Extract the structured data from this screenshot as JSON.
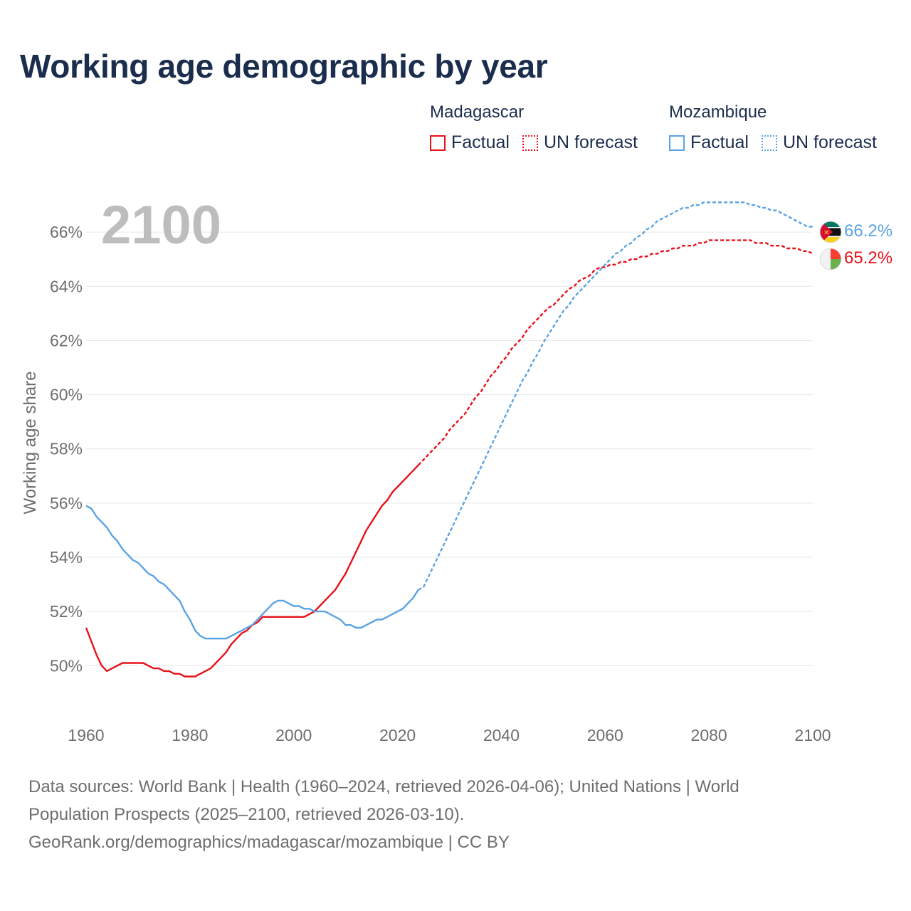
{
  "title": "Working age demographic by year",
  "legend": {
    "groups": [
      {
        "country": "Madagascar",
        "factual_label": "Factual",
        "forecast_label": "UN forecast",
        "color": "#e8111a"
      },
      {
        "country": "Mozambique",
        "factual_label": "Factual",
        "forecast_label": "UN forecast",
        "color": "#5aa3e3"
      }
    ]
  },
  "chart_data": {
    "type": "line",
    "title": "Working age demographic by year",
    "ylabel": "Working age share",
    "xlabel": "",
    "year_watermark": "2100",
    "xlim": [
      1960,
      2100
    ],
    "ylim": [
      48.3,
      68
    ],
    "x_ticks": [
      1960,
      1980,
      2000,
      2020,
      2040,
      2060,
      2080,
      2100
    ],
    "y_ticks": [
      50,
      52,
      54,
      56,
      58,
      60,
      62,
      64,
      66
    ],
    "y_tick_suffix": "%",
    "forecast_start_year": 2025,
    "series": [
      {
        "name": "Madagascar",
        "color": "#e8111a",
        "end_label": "65.2%",
        "flag": "madagascar-flag",
        "points": [
          [
            1960,
            51.4
          ],
          [
            1961,
            50.9
          ],
          [
            1962,
            50.4
          ],
          [
            1963,
            50.0
          ],
          [
            1964,
            49.8
          ],
          [
            1965,
            49.9
          ],
          [
            1966,
            50.0
          ],
          [
            1967,
            50.1
          ],
          [
            1968,
            50.1
          ],
          [
            1969,
            50.1
          ],
          [
            1970,
            50.1
          ],
          [
            1971,
            50.1
          ],
          [
            1972,
            50.0
          ],
          [
            1973,
            49.9
          ],
          [
            1974,
            49.9
          ],
          [
            1975,
            49.8
          ],
          [
            1976,
            49.8
          ],
          [
            1977,
            49.7
          ],
          [
            1978,
            49.7
          ],
          [
            1979,
            49.6
          ],
          [
            1980,
            49.6
          ],
          [
            1981,
            49.6
          ],
          [
            1982,
            49.7
          ],
          [
            1983,
            49.8
          ],
          [
            1984,
            49.9
          ],
          [
            1985,
            50.1
          ],
          [
            1986,
            50.3
          ],
          [
            1987,
            50.5
          ],
          [
            1988,
            50.8
          ],
          [
            1989,
            51.0
          ],
          [
            1990,
            51.2
          ],
          [
            1991,
            51.3
          ],
          [
            1992,
            51.5
          ],
          [
            1993,
            51.6
          ],
          [
            1994,
            51.8
          ],
          [
            1995,
            51.8
          ],
          [
            1996,
            51.8
          ],
          [
            1997,
            51.8
          ],
          [
            1998,
            51.8
          ],
          [
            1999,
            51.8
          ],
          [
            2000,
            51.8
          ],
          [
            2001,
            51.8
          ],
          [
            2002,
            51.8
          ],
          [
            2003,
            51.9
          ],
          [
            2004,
            52.0
          ],
          [
            2005,
            52.2
          ],
          [
            2006,
            52.4
          ],
          [
            2007,
            52.6
          ],
          [
            2008,
            52.8
          ],
          [
            2009,
            53.1
          ],
          [
            2010,
            53.4
          ],
          [
            2011,
            53.8
          ],
          [
            2012,
            54.2
          ],
          [
            2013,
            54.6
          ],
          [
            2014,
            55.0
          ],
          [
            2015,
            55.3
          ],
          [
            2016,
            55.6
          ],
          [
            2017,
            55.9
          ],
          [
            2018,
            56.1
          ],
          [
            2019,
            56.4
          ],
          [
            2020,
            56.6
          ],
          [
            2021,
            56.8
          ],
          [
            2022,
            57.0
          ],
          [
            2023,
            57.2
          ],
          [
            2024,
            57.4
          ],
          [
            2025,
            57.6
          ],
          [
            2026,
            57.8
          ],
          [
            2027,
            58.0
          ],
          [
            2028,
            58.2
          ],
          [
            2029,
            58.4
          ],
          [
            2030,
            58.7
          ],
          [
            2031,
            58.9
          ],
          [
            2032,
            59.1
          ],
          [
            2033,
            59.3
          ],
          [
            2034,
            59.6
          ],
          [
            2035,
            59.9
          ],
          [
            2036,
            60.1
          ],
          [
            2037,
            60.4
          ],
          [
            2038,
            60.7
          ],
          [
            2039,
            60.9
          ],
          [
            2040,
            61.2
          ],
          [
            2041,
            61.4
          ],
          [
            2042,
            61.7
          ],
          [
            2043,
            61.9
          ],
          [
            2044,
            62.1
          ],
          [
            2045,
            62.4
          ],
          [
            2046,
            62.6
          ],
          [
            2047,
            62.8
          ],
          [
            2048,
            63.0
          ],
          [
            2049,
            63.2
          ],
          [
            2050,
            63.3
          ],
          [
            2051,
            63.5
          ],
          [
            2052,
            63.7
          ],
          [
            2053,
            63.9
          ],
          [
            2054,
            64.0
          ],
          [
            2055,
            64.2
          ],
          [
            2056,
            64.3
          ],
          [
            2057,
            64.4
          ],
          [
            2058,
            64.6
          ],
          [
            2059,
            64.7
          ],
          [
            2060,
            64.7
          ],
          [
            2061,
            64.8
          ],
          [
            2062,
            64.8
          ],
          [
            2063,
            64.9
          ],
          [
            2064,
            64.9
          ],
          [
            2065,
            65.0
          ],
          [
            2066,
            65.0
          ],
          [
            2067,
            65.1
          ],
          [
            2068,
            65.1
          ],
          [
            2069,
            65.2
          ],
          [
            2070,
            65.2
          ],
          [
            2071,
            65.3
          ],
          [
            2072,
            65.3
          ],
          [
            2073,
            65.4
          ],
          [
            2074,
            65.4
          ],
          [
            2075,
            65.5
          ],
          [
            2076,
            65.5
          ],
          [
            2077,
            65.5
          ],
          [
            2078,
            65.6
          ],
          [
            2079,
            65.6
          ],
          [
            2080,
            65.7
          ],
          [
            2081,
            65.7
          ],
          [
            2082,
            65.7
          ],
          [
            2083,
            65.7
          ],
          [
            2084,
            65.7
          ],
          [
            2085,
            65.7
          ],
          [
            2086,
            65.7
          ],
          [
            2087,
            65.7
          ],
          [
            2088,
            65.7
          ],
          [
            2089,
            65.6
          ],
          [
            2090,
            65.6
          ],
          [
            2091,
            65.6
          ],
          [
            2092,
            65.5
          ],
          [
            2093,
            65.5
          ],
          [
            2094,
            65.5
          ],
          [
            2095,
            65.4
          ],
          [
            2096,
            65.4
          ],
          [
            2097,
            65.4
          ],
          [
            2098,
            65.3
          ],
          [
            2099,
            65.3
          ],
          [
            2100,
            65.2
          ]
        ]
      },
      {
        "name": "Mozambique",
        "color": "#5aa3e3",
        "end_label": "66.2%",
        "flag": "mozambique-flag",
        "points": [
          [
            1960,
            55.9
          ],
          [
            1961,
            55.8
          ],
          [
            1962,
            55.5
          ],
          [
            1963,
            55.3
          ],
          [
            1964,
            55.1
          ],
          [
            1965,
            54.8
          ],
          [
            1966,
            54.6
          ],
          [
            1967,
            54.3
          ],
          [
            1968,
            54.1
          ],
          [
            1969,
            53.9
          ],
          [
            1970,
            53.8
          ],
          [
            1971,
            53.6
          ],
          [
            1972,
            53.4
          ],
          [
            1973,
            53.3
          ],
          [
            1974,
            53.1
          ],
          [
            1975,
            53.0
          ],
          [
            1976,
            52.8
          ],
          [
            1977,
            52.6
          ],
          [
            1978,
            52.4
          ],
          [
            1979,
            52.0
          ],
          [
            1980,
            51.7
          ],
          [
            1981,
            51.3
          ],
          [
            1982,
            51.1
          ],
          [
            1983,
            51.0
          ],
          [
            1984,
            51.0
          ],
          [
            1985,
            51.0
          ],
          [
            1986,
            51.0
          ],
          [
            1987,
            51.0
          ],
          [
            1988,
            51.1
          ],
          [
            1989,
            51.2
          ],
          [
            1990,
            51.3
          ],
          [
            1991,
            51.4
          ],
          [
            1992,
            51.5
          ],
          [
            1993,
            51.7
          ],
          [
            1994,
            51.9
          ],
          [
            1995,
            52.1
          ],
          [
            1996,
            52.3
          ],
          [
            1997,
            52.4
          ],
          [
            1998,
            52.4
          ],
          [
            1999,
            52.3
          ],
          [
            2000,
            52.2
          ],
          [
            2001,
            52.2
          ],
          [
            2002,
            52.1
          ],
          [
            2003,
            52.1
          ],
          [
            2004,
            52.0
          ],
          [
            2005,
            52.0
          ],
          [
            2006,
            52.0
          ],
          [
            2007,
            51.9
          ],
          [
            2008,
            51.8
          ],
          [
            2009,
            51.7
          ],
          [
            2010,
            51.5
          ],
          [
            2011,
            51.5
          ],
          [
            2012,
            51.4
          ],
          [
            2013,
            51.4
          ],
          [
            2014,
            51.5
          ],
          [
            2015,
            51.6
          ],
          [
            2016,
            51.7
          ],
          [
            2017,
            51.7
          ],
          [
            2018,
            51.8
          ],
          [
            2019,
            51.9
          ],
          [
            2020,
            52.0
          ],
          [
            2021,
            52.1
          ],
          [
            2022,
            52.3
          ],
          [
            2023,
            52.5
          ],
          [
            2024,
            52.8
          ],
          [
            2025,
            52.9
          ],
          [
            2026,
            53.3
          ],
          [
            2027,
            53.7
          ],
          [
            2028,
            54.1
          ],
          [
            2029,
            54.5
          ],
          [
            2030,
            54.9
          ],
          [
            2031,
            55.3
          ],
          [
            2032,
            55.7
          ],
          [
            2033,
            56.1
          ],
          [
            2034,
            56.5
          ],
          [
            2035,
            56.9
          ],
          [
            2036,
            57.3
          ],
          [
            2037,
            57.7
          ],
          [
            2038,
            58.1
          ],
          [
            2039,
            58.5
          ],
          [
            2040,
            58.9
          ],
          [
            2041,
            59.3
          ],
          [
            2042,
            59.7
          ],
          [
            2043,
            60.1
          ],
          [
            2044,
            60.5
          ],
          [
            2045,
            60.8
          ],
          [
            2046,
            61.2
          ],
          [
            2047,
            61.5
          ],
          [
            2048,
            61.9
          ],
          [
            2049,
            62.2
          ],
          [
            2050,
            62.5
          ],
          [
            2051,
            62.8
          ],
          [
            2052,
            63.1
          ],
          [
            2053,
            63.3
          ],
          [
            2054,
            63.6
          ],
          [
            2055,
            63.8
          ],
          [
            2056,
            64.0
          ],
          [
            2057,
            64.2
          ],
          [
            2058,
            64.4
          ],
          [
            2059,
            64.6
          ],
          [
            2060,
            64.8
          ],
          [
            2061,
            65.0
          ],
          [
            2062,
            65.2
          ],
          [
            2063,
            65.3
          ],
          [
            2064,
            65.5
          ],
          [
            2065,
            65.6
          ],
          [
            2066,
            65.8
          ],
          [
            2067,
            65.9
          ],
          [
            2068,
            66.1
          ],
          [
            2069,
            66.2
          ],
          [
            2070,
            66.4
          ],
          [
            2071,
            66.5
          ],
          [
            2072,
            66.6
          ],
          [
            2073,
            66.7
          ],
          [
            2074,
            66.8
          ],
          [
            2075,
            66.9
          ],
          [
            2076,
            66.9
          ],
          [
            2077,
            67.0
          ],
          [
            2078,
            67.0
          ],
          [
            2079,
            67.1
          ],
          [
            2080,
            67.1
          ],
          [
            2081,
            67.1
          ],
          [
            2082,
            67.1
          ],
          [
            2083,
            67.1
          ],
          [
            2084,
            67.1
          ],
          [
            2085,
            67.1
          ],
          [
            2086,
            67.1
          ],
          [
            2087,
            67.1
          ],
          [
            2088,
            67.0
          ],
          [
            2089,
            67.0
          ],
          [
            2090,
            66.9
          ],
          [
            2091,
            66.9
          ],
          [
            2092,
            66.8
          ],
          [
            2093,
            66.8
          ],
          [
            2094,
            66.7
          ],
          [
            2095,
            66.6
          ],
          [
            2096,
            66.5
          ],
          [
            2097,
            66.4
          ],
          [
            2098,
            66.3
          ],
          [
            2099,
            66.2
          ],
          [
            2100,
            66.2
          ]
        ]
      }
    ]
  },
  "footer": {
    "line1": "Data sources: World Bank | Health (1960–2024, retrieved 2026-04-06); United Nations | World",
    "line2": "Population Prospects (2025–2100, retrieved 2026-03-10).",
    "line3": "GeoRank.org/demographics/madagascar/mozambique | CC BY"
  }
}
